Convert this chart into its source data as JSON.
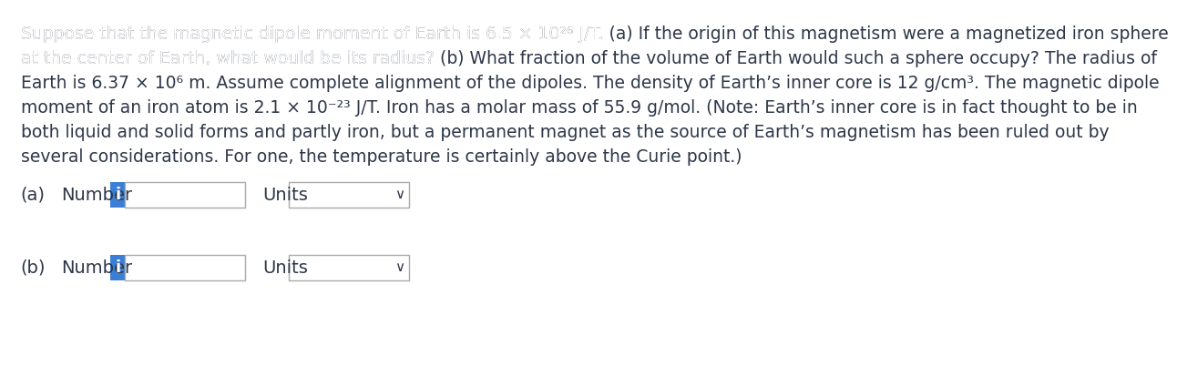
{
  "background_color": "#ffffff",
  "text_color": "#2d3748",
  "paragraph": "Suppose that the magnetic dipole moment of Earth is 6.5 × 10²⁶ J/T. (a) If the origin of this magnetism were a magnetized iron sphere at the center of Earth, what would be its radius? (b) What fraction of the volume of Earth would such a sphere occupy? The radius of Earth is 6.37 × 10⁶ m. Assume complete alignment of the dipoles. The density of Earth’s inner core is 12 g/cm³. The magnetic dipole moment of an iron atom is 2.1 × 10⁻²³ J/T. Iron has a molar mass of 55.9 g/mol. (Note: Earth’s inner core is in fact thought to be in both liquid and solid forms and partly iron, but a permanent magnet as the source of Earth’s magnetism has been ruled out by several considerations. For one, the temperature is certainly above the Curie point.)",
  "part_a_label": "(a)",
  "part_b_label": "(b)",
  "number_label": "Number",
  "units_label": "Units",
  "input_box_color": "#ffffff",
  "input_box_border": "#aaaaaa",
  "icon_bg_color": "#3a7fd5",
  "icon_text": "i",
  "icon_text_color": "#ffffff",
  "dropdown_arrow": "∨",
  "font_size_paragraph": 13.5,
  "font_size_labels": 14,
  "font_size_icon": 13
}
